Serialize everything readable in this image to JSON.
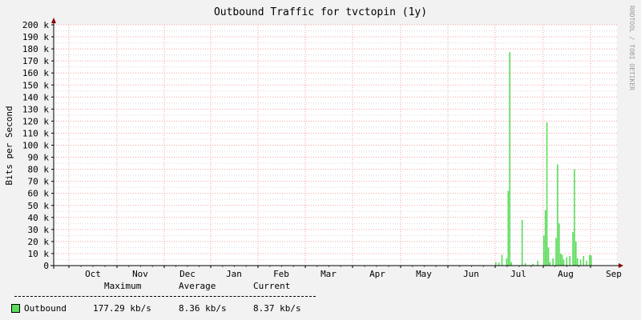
{
  "chart_data": {
    "type": "area",
    "title": "Outbound Traffic for tvctopin (1y)",
    "ylabel": "Bits per Second",
    "xlabel": "",
    "side_label": "RRDTOOL / TOBI OETIKER",
    "y_ticks": [
      "0",
      "10 k",
      "20 k",
      "30 k",
      "40 k",
      "50 k",
      "60 k",
      "70 k",
      "80 k",
      "90 k",
      "100 k",
      "110 k",
      "120 k",
      "130 k",
      "140 k",
      "150 k",
      "160 k",
      "170 k",
      "180 k",
      "190 k",
      "200 k"
    ],
    "ylim": [
      0,
      200000
    ],
    "x_ticks": [
      "Oct",
      "Nov",
      "Dec",
      "Jan",
      "Feb",
      "Mar",
      "Apr",
      "May",
      "Jun",
      "Jul",
      "Aug",
      "Sep"
    ],
    "grid": true,
    "series": [
      {
        "name": "Outbound",
        "color": "#5bdc5b",
        "points": [
          [
            "Jul 1",
            3000
          ],
          [
            "Jul 3",
            2500
          ],
          [
            "Jul 5",
            9000
          ],
          [
            "Jul 8",
            6000
          ],
          [
            "Jul 9",
            62000
          ],
          [
            "Jul 10",
            177290
          ],
          [
            "Jul 11",
            3000
          ],
          [
            "Jul 18",
            38000
          ],
          [
            "Jul 20",
            2000
          ],
          [
            "Jul 25",
            1500
          ],
          [
            "Jul 28",
            4000
          ],
          [
            "Aug 1",
            25000
          ],
          [
            "Aug 2",
            46000
          ],
          [
            "Aug 3",
            119000
          ],
          [
            "Aug 4",
            15000
          ],
          [
            "Aug 5",
            3000
          ],
          [
            "Aug 7",
            6000
          ],
          [
            "Aug 9",
            23000
          ],
          [
            "Aug 10",
            84000
          ],
          [
            "Aug 11",
            35000
          ],
          [
            "Aug 12",
            10000
          ],
          [
            "Aug 13",
            9000
          ],
          [
            "Aug 14",
            5000
          ],
          [
            "Aug 16",
            7000
          ],
          [
            "Aug 18",
            8000
          ],
          [
            "Aug 20",
            28000
          ],
          [
            "Aug 21",
            80000
          ],
          [
            "Aug 22",
            20000
          ],
          [
            "Aug 23",
            6000
          ],
          [
            "Aug 25",
            5000
          ],
          [
            "Aug 27",
            8000
          ],
          [
            "Aug 29",
            4000
          ],
          [
            "Aug 31",
            9000
          ],
          [
            "Sep 1",
            8370
          ]
        ]
      }
    ]
  },
  "legend": {
    "headers": [
      "Maximum",
      "Average",
      "Current"
    ],
    "rule": "----------------------------------------------------------------",
    "rows": [
      {
        "name": "Outbound",
        "color": "#5bdc5b",
        "max": "177.29 kb/s",
        "avg": "8.36 kb/s",
        "cur": "8.37 kb/s"
      }
    ]
  }
}
